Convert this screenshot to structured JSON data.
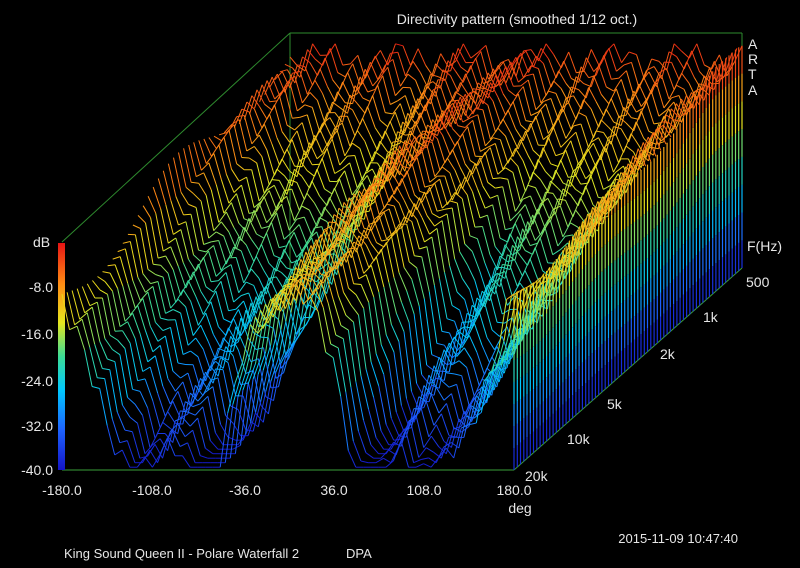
{
  "chart_data": {
    "type": "waterfall-3d",
    "title": "Directivity pattern (smoothed 1/12 oct.)",
    "brand": [
      "A",
      "R",
      "T",
      "A"
    ],
    "z_axis": {
      "label": "dB",
      "ticks": [
        "-8.0",
        "-16.0",
        "-24.0",
        "-32.0",
        "-40.0"
      ],
      "range": [
        -40,
        0
      ]
    },
    "x_axis": {
      "label": "deg",
      "ticks": [
        "-180.0",
        "-108.0",
        "-36.0",
        "36.0",
        "108.0",
        "180.0"
      ],
      "range": [
        -180,
        180
      ]
    },
    "y_axis": {
      "label": "F(Hz)",
      "ticks": [
        "500",
        "1k",
        "2k",
        "5k",
        "10k",
        "20k"
      ],
      "scale": "log",
      "range": [
        500,
        20000
      ]
    },
    "colormap": [
      "#1414c8",
      "#1e64ff",
      "#00c8ff",
      "#3cdc96",
      "#e6e61e",
      "#ff8c14",
      "#e61414"
    ],
    "footer_left": "King Sound Queen II - Polare Waterfall 2",
    "footer_mode": "DPA",
    "timestamp": "2015-11-09  10:47:40"
  }
}
